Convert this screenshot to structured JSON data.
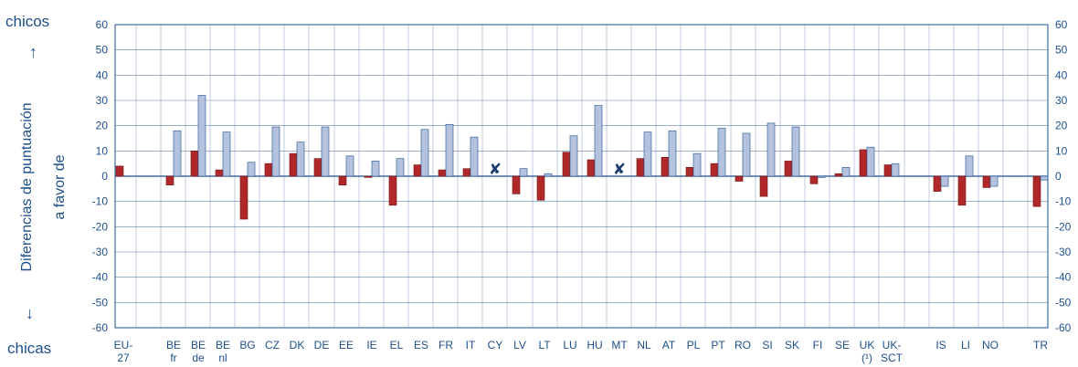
{
  "chart_data": {
    "type": "bar",
    "top_label": "chicos",
    "bottom_label": "chicas",
    "ylabel_line1": "Diferencias de puntuación",
    "ylabel_line2": "a favor de",
    "ylim": [
      -60,
      60
    ],
    "yticks": [
      60,
      50,
      40,
      30,
      20,
      10,
      0,
      -10,
      -20,
      -30,
      -40,
      -50,
      -60
    ],
    "grid": true,
    "colors": {
      "dark": "#b0282a",
      "light": "#b4c2de",
      "axis": "#1d4f8c"
    },
    "categories": [
      {
        "l1": "EU-",
        "l2": "27"
      },
      {
        "l1": "BE",
        "l2": "fr"
      },
      {
        "l1": "BE",
        "l2": "de"
      },
      {
        "l1": "BE",
        "l2": "nl"
      },
      {
        "l1": "BG",
        "l2": ""
      },
      {
        "l1": "CZ",
        "l2": ""
      },
      {
        "l1": "DK",
        "l2": ""
      },
      {
        "l1": "DE",
        "l2": ""
      },
      {
        "l1": "EE",
        "l2": ""
      },
      {
        "l1": "IE",
        "l2": ""
      },
      {
        "l1": "EL",
        "l2": ""
      },
      {
        "l1": "ES",
        "l2": ""
      },
      {
        "l1": "FR",
        "l2": ""
      },
      {
        "l1": "IT",
        "l2": ""
      },
      {
        "l1": "CY",
        "l2": ""
      },
      {
        "l1": "LV",
        "l2": ""
      },
      {
        "l1": "LT",
        "l2": ""
      },
      {
        "l1": "LU",
        "l2": ""
      },
      {
        "l1": "HU",
        "l2": ""
      },
      {
        "l1": "MT",
        "l2": ""
      },
      {
        "l1": "NL",
        "l2": ""
      },
      {
        "l1": "AT",
        "l2": ""
      },
      {
        "l1": "PL",
        "l2": ""
      },
      {
        "l1": "PT",
        "l2": ""
      },
      {
        "l1": "RO",
        "l2": ""
      },
      {
        "l1": "SI",
        "l2": ""
      },
      {
        "l1": "SK",
        "l2": ""
      },
      {
        "l1": "FI",
        "l2": ""
      },
      {
        "l1": "SE",
        "l2": ""
      },
      {
        "l1": "UK",
        "l2": "(¹)"
      },
      {
        "l1": "UK-",
        "l2": "SCT"
      },
      {
        "l1": "IS",
        "l2": ""
      },
      {
        "l1": "LI",
        "l2": ""
      },
      {
        "l1": "NO",
        "l2": ""
      },
      {
        "l1": "TR",
        "l2": ""
      }
    ],
    "series": [
      {
        "style": "dark",
        "values": [
          4,
          -3.5,
          10,
          2.5,
          -17,
          5,
          9,
          7,
          -3.5,
          -0.5,
          -11.5,
          4.5,
          2.5,
          3,
          null,
          -7,
          -9.5,
          9.5,
          6.5,
          null,
          7,
          7.5,
          3.5,
          5,
          -2,
          -8,
          6,
          -3,
          1,
          10.5,
          4.5,
          -6,
          -11.5,
          -4.5,
          -12
        ]
      },
      {
        "style": "light",
        "values": [
          null,
          18,
          32,
          17.5,
          5.5,
          19.5,
          13.5,
          19.5,
          8,
          6,
          7,
          18.5,
          20.5,
          15.5,
          null,
          3,
          1,
          16,
          28,
          null,
          17.5,
          18,
          9,
          19,
          17,
          21,
          19.5,
          -0.5,
          3.5,
          11.5,
          5,
          -4,
          8,
          -4,
          -1.5
        ]
      }
    ],
    "not_available": [
      "CY",
      "MT"
    ],
    "not_available_symbol": "✘"
  }
}
